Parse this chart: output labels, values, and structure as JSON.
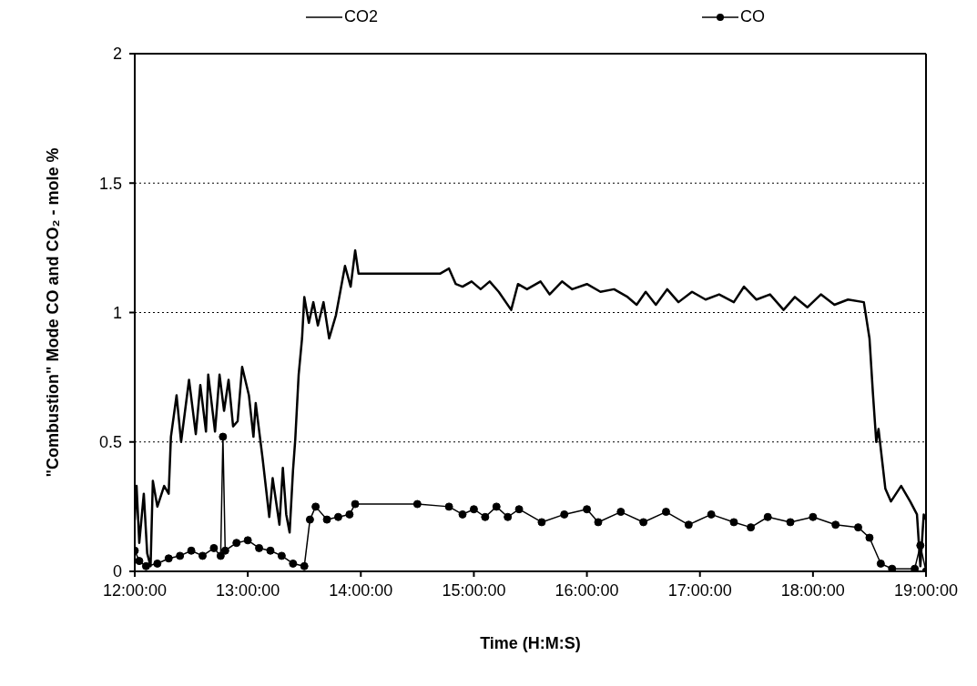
{
  "chart_data": {
    "type": "line",
    "xlabel": "Time  (H:M:S)",
    "ylabel": "\"Combustion\" Mode CO and CO₂ - mole %",
    "xlim": [
      12,
      19
    ],
    "xticks": [
      {
        "value": 12,
        "label": "12:00:00"
      },
      {
        "value": 13,
        "label": "13:00:00"
      },
      {
        "value": 14,
        "label": "14:00:00"
      },
      {
        "value": 15,
        "label": "15:00:00"
      },
      {
        "value": 16,
        "label": "16:00:00"
      },
      {
        "value": 17,
        "label": "17:00:00"
      },
      {
        "value": 18,
        "label": "18:00:00"
      },
      {
        "value": 19,
        "label": "19:00:00"
      }
    ],
    "ylim": [
      0,
      2
    ],
    "yticks": [
      0,
      0.5,
      1,
      1.5,
      2
    ],
    "grid": "y",
    "legend": "top",
    "series": [
      {
        "name": "CO2",
        "color": "#000000",
        "marker": "none",
        "x": [
          12.0,
          12.016,
          12.04,
          12.08,
          12.11,
          12.14,
          12.16,
          12.2,
          12.26,
          12.3,
          12.32,
          12.37,
          12.41,
          12.48,
          12.54,
          12.58,
          12.63,
          12.65,
          12.71,
          12.75,
          12.79,
          12.83,
          12.87,
          12.91,
          12.95,
          13.01,
          13.05,
          13.07,
          13.13,
          13.19,
          13.22,
          13.28,
          13.31,
          13.34,
          13.37,
          13.4,
          13.42,
          13.45,
          13.48,
          13.5,
          13.54,
          13.58,
          13.62,
          13.67,
          13.72,
          13.78,
          13.86,
          13.91,
          13.95,
          13.98,
          14.7,
          14.78,
          14.84,
          14.9,
          14.98,
          15.06,
          15.14,
          15.22,
          15.33,
          15.39,
          15.47,
          15.59,
          15.67,
          15.78,
          15.87,
          16.0,
          16.12,
          16.24,
          16.36,
          16.44,
          16.52,
          16.61,
          16.71,
          16.81,
          16.93,
          17.05,
          17.17,
          17.3,
          17.39,
          17.5,
          17.62,
          17.74,
          17.84,
          17.95,
          18.07,
          18.19,
          18.31,
          18.45,
          18.5,
          18.53,
          18.56,
          18.58,
          18.64,
          18.69,
          18.78,
          18.86,
          18.92,
          18.95,
          18.98,
          19.0
        ],
        "values": [
          0.2,
          0.33,
          0.11,
          0.3,
          0.07,
          0.02,
          0.35,
          0.25,
          0.33,
          0.3,
          0.52,
          0.68,
          0.5,
          0.74,
          0.53,
          0.72,
          0.54,
          0.76,
          0.54,
          0.76,
          0.62,
          0.74,
          0.56,
          0.58,
          0.79,
          0.68,
          0.52,
          0.65,
          0.44,
          0.21,
          0.36,
          0.18,
          0.4,
          0.22,
          0.15,
          0.39,
          0.51,
          0.76,
          0.9,
          1.06,
          0.96,
          1.04,
          0.95,
          1.04,
          0.9,
          0.99,
          1.18,
          1.1,
          1.24,
          1.15,
          1.15,
          1.17,
          1.11,
          1.1,
          1.12,
          1.09,
          1.12,
          1.08,
          1.01,
          1.11,
          1.09,
          1.12,
          1.07,
          1.12,
          1.09,
          1.11,
          1.08,
          1.09,
          1.06,
          1.03,
          1.08,
          1.03,
          1.09,
          1.04,
          1.08,
          1.05,
          1.07,
          1.04,
          1.1,
          1.05,
          1.07,
          1.01,
          1.06,
          1.02,
          1.07,
          1.03,
          1.05,
          1.04,
          0.9,
          0.69,
          0.5,
          0.55,
          0.32,
          0.27,
          0.33,
          0.27,
          0.22,
          0.02,
          0.22,
          0.2
        ]
      },
      {
        "name": "CO",
        "color": "#000000",
        "marker": "circle",
        "x": [
          12.0,
          12.04,
          12.1,
          12.2,
          12.3,
          12.4,
          12.5,
          12.6,
          12.7,
          12.76,
          12.78,
          12.8,
          12.9,
          13.0,
          13.1,
          13.2,
          13.3,
          13.4,
          13.5,
          13.55,
          13.6,
          13.7,
          13.8,
          13.9,
          13.95,
          14.5,
          14.78,
          14.9,
          15.0,
          15.1,
          15.2,
          15.3,
          15.4,
          15.6,
          15.8,
          16.0,
          16.1,
          16.3,
          16.5,
          16.7,
          16.9,
          17.1,
          17.3,
          17.45,
          17.6,
          17.8,
          18.0,
          18.2,
          18.4,
          18.5,
          18.6,
          18.7,
          18.9,
          18.95,
          19.0
        ],
        "values": [
          0.08,
          0.04,
          0.02,
          0.03,
          0.05,
          0.06,
          0.08,
          0.06,
          0.09,
          0.06,
          0.52,
          0.08,
          0.11,
          0.12,
          0.09,
          0.08,
          0.06,
          0.03,
          0.02,
          0.2,
          0.25,
          0.2,
          0.21,
          0.22,
          0.26,
          0.26,
          0.25,
          0.22,
          0.24,
          0.21,
          0.25,
          0.21,
          0.24,
          0.19,
          0.22,
          0.24,
          0.19,
          0.23,
          0.19,
          0.23,
          0.18,
          0.22,
          0.19,
          0.17,
          0.21,
          0.19,
          0.21,
          0.18,
          0.17,
          0.13,
          0.03,
          0.01,
          0.01,
          0.1,
          0.0
        ]
      }
    ]
  }
}
